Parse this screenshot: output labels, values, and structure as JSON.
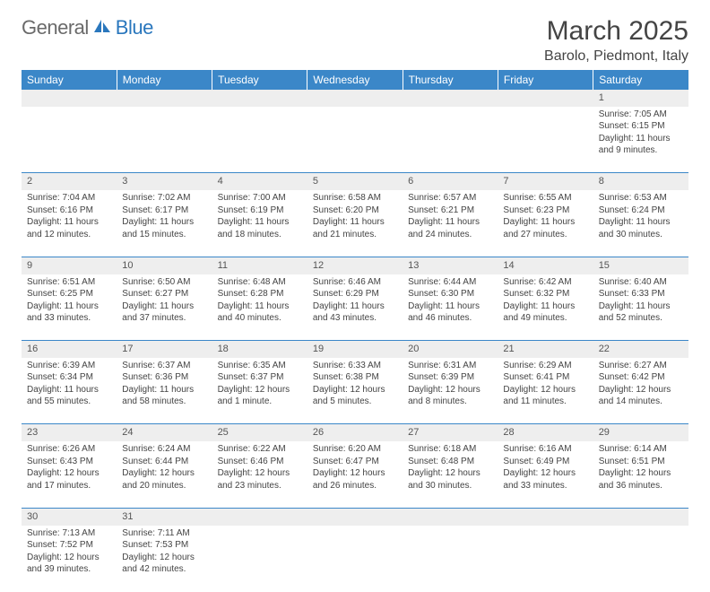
{
  "logo": {
    "part1": "General",
    "part2": "Blue",
    "icon_color": "#2a77bd"
  },
  "header": {
    "month_title": "March 2025",
    "location": "Barolo, Piedmont, Italy"
  },
  "colors": {
    "header_bg": "#3b87c8",
    "header_text": "#ffffff",
    "daynum_bg": "#eeeeee",
    "row_divider": "#3b87c8",
    "body_text": "#444444",
    "logo_gray": "#6a6a6a",
    "logo_blue": "#2a77bd"
  },
  "weekdays": [
    "Sunday",
    "Monday",
    "Tuesday",
    "Wednesday",
    "Thursday",
    "Friday",
    "Saturday"
  ],
  "weeks": [
    [
      null,
      null,
      null,
      null,
      null,
      null,
      {
        "n": "1",
        "sunrise": "Sunrise: 7:05 AM",
        "sunset": "Sunset: 6:15 PM",
        "daylight": "Daylight: 11 hours and 9 minutes."
      }
    ],
    [
      {
        "n": "2",
        "sunrise": "Sunrise: 7:04 AM",
        "sunset": "Sunset: 6:16 PM",
        "daylight": "Daylight: 11 hours and 12 minutes."
      },
      {
        "n": "3",
        "sunrise": "Sunrise: 7:02 AM",
        "sunset": "Sunset: 6:17 PM",
        "daylight": "Daylight: 11 hours and 15 minutes."
      },
      {
        "n": "4",
        "sunrise": "Sunrise: 7:00 AM",
        "sunset": "Sunset: 6:19 PM",
        "daylight": "Daylight: 11 hours and 18 minutes."
      },
      {
        "n": "5",
        "sunrise": "Sunrise: 6:58 AM",
        "sunset": "Sunset: 6:20 PM",
        "daylight": "Daylight: 11 hours and 21 minutes."
      },
      {
        "n": "6",
        "sunrise": "Sunrise: 6:57 AM",
        "sunset": "Sunset: 6:21 PM",
        "daylight": "Daylight: 11 hours and 24 minutes."
      },
      {
        "n": "7",
        "sunrise": "Sunrise: 6:55 AM",
        "sunset": "Sunset: 6:23 PM",
        "daylight": "Daylight: 11 hours and 27 minutes."
      },
      {
        "n": "8",
        "sunrise": "Sunrise: 6:53 AM",
        "sunset": "Sunset: 6:24 PM",
        "daylight": "Daylight: 11 hours and 30 minutes."
      }
    ],
    [
      {
        "n": "9",
        "sunrise": "Sunrise: 6:51 AM",
        "sunset": "Sunset: 6:25 PM",
        "daylight": "Daylight: 11 hours and 33 minutes."
      },
      {
        "n": "10",
        "sunrise": "Sunrise: 6:50 AM",
        "sunset": "Sunset: 6:27 PM",
        "daylight": "Daylight: 11 hours and 37 minutes."
      },
      {
        "n": "11",
        "sunrise": "Sunrise: 6:48 AM",
        "sunset": "Sunset: 6:28 PM",
        "daylight": "Daylight: 11 hours and 40 minutes."
      },
      {
        "n": "12",
        "sunrise": "Sunrise: 6:46 AM",
        "sunset": "Sunset: 6:29 PM",
        "daylight": "Daylight: 11 hours and 43 minutes."
      },
      {
        "n": "13",
        "sunrise": "Sunrise: 6:44 AM",
        "sunset": "Sunset: 6:30 PM",
        "daylight": "Daylight: 11 hours and 46 minutes."
      },
      {
        "n": "14",
        "sunrise": "Sunrise: 6:42 AM",
        "sunset": "Sunset: 6:32 PM",
        "daylight": "Daylight: 11 hours and 49 minutes."
      },
      {
        "n": "15",
        "sunrise": "Sunrise: 6:40 AM",
        "sunset": "Sunset: 6:33 PM",
        "daylight": "Daylight: 11 hours and 52 minutes."
      }
    ],
    [
      {
        "n": "16",
        "sunrise": "Sunrise: 6:39 AM",
        "sunset": "Sunset: 6:34 PM",
        "daylight": "Daylight: 11 hours and 55 minutes."
      },
      {
        "n": "17",
        "sunrise": "Sunrise: 6:37 AM",
        "sunset": "Sunset: 6:36 PM",
        "daylight": "Daylight: 11 hours and 58 minutes."
      },
      {
        "n": "18",
        "sunrise": "Sunrise: 6:35 AM",
        "sunset": "Sunset: 6:37 PM",
        "daylight": "Daylight: 12 hours and 1 minute."
      },
      {
        "n": "19",
        "sunrise": "Sunrise: 6:33 AM",
        "sunset": "Sunset: 6:38 PM",
        "daylight": "Daylight: 12 hours and 5 minutes."
      },
      {
        "n": "20",
        "sunrise": "Sunrise: 6:31 AM",
        "sunset": "Sunset: 6:39 PM",
        "daylight": "Daylight: 12 hours and 8 minutes."
      },
      {
        "n": "21",
        "sunrise": "Sunrise: 6:29 AM",
        "sunset": "Sunset: 6:41 PM",
        "daylight": "Daylight: 12 hours and 11 minutes."
      },
      {
        "n": "22",
        "sunrise": "Sunrise: 6:27 AM",
        "sunset": "Sunset: 6:42 PM",
        "daylight": "Daylight: 12 hours and 14 minutes."
      }
    ],
    [
      {
        "n": "23",
        "sunrise": "Sunrise: 6:26 AM",
        "sunset": "Sunset: 6:43 PM",
        "daylight": "Daylight: 12 hours and 17 minutes."
      },
      {
        "n": "24",
        "sunrise": "Sunrise: 6:24 AM",
        "sunset": "Sunset: 6:44 PM",
        "daylight": "Daylight: 12 hours and 20 minutes."
      },
      {
        "n": "25",
        "sunrise": "Sunrise: 6:22 AM",
        "sunset": "Sunset: 6:46 PM",
        "daylight": "Daylight: 12 hours and 23 minutes."
      },
      {
        "n": "26",
        "sunrise": "Sunrise: 6:20 AM",
        "sunset": "Sunset: 6:47 PM",
        "daylight": "Daylight: 12 hours and 26 minutes."
      },
      {
        "n": "27",
        "sunrise": "Sunrise: 6:18 AM",
        "sunset": "Sunset: 6:48 PM",
        "daylight": "Daylight: 12 hours and 30 minutes."
      },
      {
        "n": "28",
        "sunrise": "Sunrise: 6:16 AM",
        "sunset": "Sunset: 6:49 PM",
        "daylight": "Daylight: 12 hours and 33 minutes."
      },
      {
        "n": "29",
        "sunrise": "Sunrise: 6:14 AM",
        "sunset": "Sunset: 6:51 PM",
        "daylight": "Daylight: 12 hours and 36 minutes."
      }
    ],
    [
      {
        "n": "30",
        "sunrise": "Sunrise: 7:13 AM",
        "sunset": "Sunset: 7:52 PM",
        "daylight": "Daylight: 12 hours and 39 minutes."
      },
      {
        "n": "31",
        "sunrise": "Sunrise: 7:11 AM",
        "sunset": "Sunset: 7:53 PM",
        "daylight": "Daylight: 12 hours and 42 minutes."
      },
      null,
      null,
      null,
      null,
      null
    ]
  ]
}
